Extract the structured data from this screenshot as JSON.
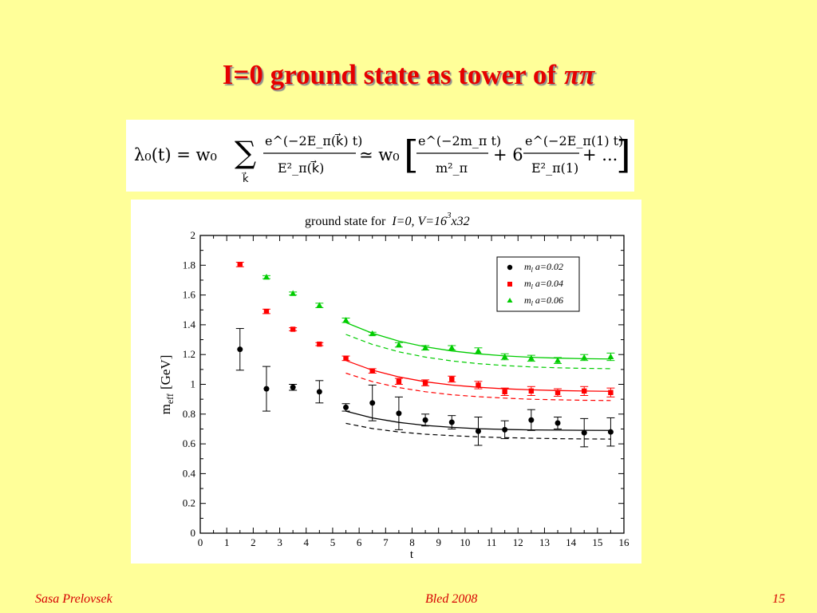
{
  "slide": {
    "title": "I=0 ground state as tower of",
    "title_symbol": "ππ",
    "title_color": "#e60000",
    "background": "#ffff99"
  },
  "formula": {
    "lhs": "λ₀(t) = w₀",
    "sum_index": "k⃗",
    "term1_num": "e^(−2E_π(k⃗) t)",
    "term1_den": "E²_π(k⃗)",
    "approx": "≃ w₀",
    "term2_num": "e^(−2m_π t)",
    "term2_den": "m²_π",
    "coef": "+ 6",
    "term3_num": "e^(−2E_π(1) t)",
    "term3_den": "E²_π(1)",
    "tail": "+ ..."
  },
  "footer": {
    "author": "Sasa Prelovsek",
    "venue": "Bled 2008",
    "page": "15"
  },
  "chart_data": {
    "type": "scatter",
    "title_prefix": "ground state for",
    "title_italic": "I=0, V=16",
    "title_sup": "3",
    "title_suffix": "x32",
    "xlabel": "t",
    "ylabel_main": "m",
    "ylabel_sub": "eff",
    "ylabel_unit": "[GeV]",
    "xlim": [
      0,
      16
    ],
    "ylim": [
      0,
      2
    ],
    "xticks": [
      "0",
      "1",
      "2",
      "3",
      "4",
      "5",
      "6",
      "7",
      "8",
      "9",
      "10",
      "11",
      "12",
      "13",
      "14",
      "15",
      "16"
    ],
    "yticks": [
      "0",
      "0.2",
      "0.4",
      "0.6",
      "0.8",
      "1",
      "1.2",
      "1.4",
      "1.6",
      "1.8",
      "2"
    ],
    "legend_position": "top-right",
    "series": [
      {
        "name": "m_l a=0.02",
        "legend_main": "m",
        "legend_sub": "l",
        "legend_rest": " a=0.02",
        "color": "#000000",
        "marker": "circle",
        "x": [
          1.5,
          2.5,
          3.5,
          4.5,
          5.5,
          6.5,
          7.5,
          8.5,
          9.5,
          10.5,
          11.5,
          12.5,
          13.5,
          14.5,
          15.5
        ],
        "y": [
          1.235,
          0.97,
          0.98,
          0.95,
          0.845,
          0.875,
          0.805,
          0.76,
          0.745,
          0.685,
          0.695,
          0.76,
          0.74,
          0.675,
          0.68
        ],
        "err": [
          0.14,
          0.15,
          0.02,
          0.075,
          0.025,
          0.12,
          0.11,
          0.04,
          0.045,
          0.095,
          0.06,
          0.07,
          0.04,
          0.095,
          0.095
        ],
        "fit_solid": [
          [
            5.5,
            0.82
          ],
          [
            6.5,
            0.774
          ],
          [
            7.5,
            0.744
          ],
          [
            8.5,
            0.724
          ],
          [
            9.5,
            0.711
          ],
          [
            10.5,
            0.702
          ],
          [
            11.5,
            0.697
          ],
          [
            12.5,
            0.694
          ],
          [
            13.5,
            0.692
          ],
          [
            14.5,
            0.691
          ],
          [
            15.5,
            0.69
          ]
        ],
        "fit_dashed": [
          [
            5.5,
            0.738
          ],
          [
            6.5,
            0.703
          ],
          [
            7.5,
            0.68
          ],
          [
            8.5,
            0.665
          ],
          [
            9.5,
            0.655
          ],
          [
            10.5,
            0.647
          ],
          [
            11.5,
            0.642
          ],
          [
            12.5,
            0.638
          ],
          [
            13.5,
            0.635
          ],
          [
            14.5,
            0.633
          ],
          [
            15.5,
            0.632
          ]
        ]
      },
      {
        "name": "m_l a=0.04",
        "legend_main": "m",
        "legend_sub": "l",
        "legend_rest": " a=0.04",
        "color": "#ff0000",
        "marker": "square",
        "x": [
          1.5,
          2.5,
          3.5,
          4.5,
          5.5,
          6.5,
          7.5,
          8.5,
          9.5,
          10.5,
          11.5,
          12.5,
          13.5,
          14.5,
          15.5
        ],
        "y": [
          1.805,
          1.49,
          1.37,
          1.27,
          1.175,
          1.09,
          1.02,
          1.01,
          1.035,
          0.995,
          0.95,
          0.955,
          0.945,
          0.955,
          0.945
        ],
        "err": [
          0.015,
          0.015,
          0.01,
          0.01,
          0.015,
          0.015,
          0.02,
          0.02,
          0.02,
          0.025,
          0.025,
          0.03,
          0.025,
          0.03,
          0.03
        ],
        "fit_solid": [
          [
            5.5,
            1.16
          ],
          [
            6.5,
            1.095
          ],
          [
            7.5,
            1.05
          ],
          [
            8.5,
            1.017
          ],
          [
            9.5,
            0.995
          ],
          [
            10.5,
            0.98
          ],
          [
            11.5,
            0.97
          ],
          [
            12.5,
            0.963
          ],
          [
            13.5,
            0.958
          ],
          [
            14.5,
            0.955
          ],
          [
            15.5,
            0.953
          ]
        ],
        "fit_dashed": [
          [
            5.5,
            1.075
          ],
          [
            6.5,
            1.018
          ],
          [
            7.5,
            0.978
          ],
          [
            8.5,
            0.95
          ],
          [
            9.5,
            0.93
          ],
          [
            10.5,
            0.917
          ],
          [
            11.5,
            0.907
          ],
          [
            12.5,
            0.9
          ],
          [
            13.5,
            0.896
          ],
          [
            14.5,
            0.893
          ],
          [
            15.5,
            0.891
          ]
        ]
      },
      {
        "name": "m_l a=0.06",
        "legend_main": "m",
        "legend_sub": "l",
        "legend_rest": " a=0.06",
        "color": "#00cc00",
        "marker": "triangle",
        "x": [
          2.5,
          3.5,
          4.5,
          5.5,
          6.5,
          7.5,
          8.5,
          9.5,
          10.5,
          11.5,
          12.5,
          13.5,
          14.5,
          15.5
        ],
        "y": [
          1.72,
          1.61,
          1.53,
          1.43,
          1.34,
          1.265,
          1.245,
          1.245,
          1.225,
          1.185,
          1.175,
          1.16,
          1.18,
          1.185
        ],
        "err": [
          0.01,
          0.01,
          0.015,
          0.015,
          0.01,
          0.015,
          0.015,
          0.015,
          0.02,
          0.02,
          0.02,
          0.02,
          0.02,
          0.025
        ],
        "fit_solid": [
          [
            5.5,
            1.415
          ],
          [
            6.5,
            1.343
          ],
          [
            7.5,
            1.29
          ],
          [
            8.5,
            1.252
          ],
          [
            9.5,
            1.224
          ],
          [
            10.5,
            1.205
          ],
          [
            11.5,
            1.191
          ],
          [
            12.5,
            1.182
          ],
          [
            13.5,
            1.176
          ],
          [
            14.5,
            1.172
          ],
          [
            15.5,
            1.17
          ]
        ],
        "fit_dashed": [
          [
            5.5,
            1.335
          ],
          [
            6.5,
            1.268
          ],
          [
            7.5,
            1.218
          ],
          [
            8.5,
            1.183
          ],
          [
            9.5,
            1.157
          ],
          [
            10.5,
            1.139
          ],
          [
            11.5,
            1.126
          ],
          [
            12.5,
            1.117
          ],
          [
            13.5,
            1.111
          ],
          [
            14.5,
            1.107
          ],
          [
            15.5,
            1.105
          ]
        ]
      }
    ]
  }
}
